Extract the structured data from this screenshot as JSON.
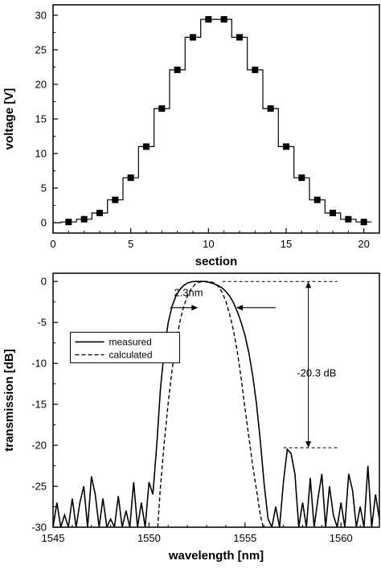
{
  "chart_data": [
    {
      "type": "line",
      "step": true,
      "xlabel": "section",
      "ylabel": "voltage [V]",
      "xlim": [
        0,
        21
      ],
      "ylim": [
        -1.5,
        31.5
      ],
      "xticks": [
        0,
        5,
        10,
        15,
        20
      ],
      "yticks": [
        0,
        5,
        10,
        15,
        20,
        25,
        30
      ],
      "series": [
        {
          "marker": "square",
          "x": [
            1,
            2,
            3,
            4,
            5,
            6,
            7,
            8,
            9,
            10,
            11,
            12,
            13,
            14,
            15,
            16,
            17,
            18,
            19,
            20
          ],
          "values": [
            0.1,
            0.5,
            1.4,
            3.3,
            6.5,
            11.0,
            16.5,
            22.1,
            26.8,
            29.4,
            29.4,
            26.8,
            22.1,
            16.5,
            11.0,
            6.5,
            3.3,
            1.4,
            0.5,
            0.1
          ]
        }
      ],
      "step_line": {
        "x": [
          0,
          0.5,
          0.5,
          1.5,
          1.5,
          2.5,
          2.5,
          3.5,
          3.5,
          4.5,
          4.5,
          5.5,
          5.5,
          6.5,
          6.5,
          7.5,
          7.5,
          8.5,
          8.5,
          9.5,
          9.5,
          11.5,
          11.5,
          12.5,
          12.5,
          13.5,
          13.5,
          14.5,
          14.5,
          15.5,
          15.5,
          16.5,
          16.5,
          17.5,
          17.5,
          18.5,
          18.5,
          19.5,
          19.5,
          20.5
        ],
        "y": [
          0,
          0,
          0.1,
          0.1,
          0.5,
          0.5,
          1.4,
          1.4,
          3.3,
          3.3,
          6.5,
          6.5,
          11.0,
          11.0,
          16.5,
          16.5,
          22.1,
          22.1,
          26.8,
          26.8,
          29.4,
          29.4,
          26.8,
          26.8,
          22.1,
          22.1,
          16.5,
          16.5,
          11.0,
          11.0,
          6.5,
          6.5,
          3.3,
          3.3,
          1.4,
          1.4,
          0.5,
          0.5,
          0.1,
          0.1
        ]
      }
    },
    {
      "type": "line",
      "xlabel": "wavelength [nm]",
      "ylabel": "transmission [dB]",
      "xlim": [
        1545,
        1562
      ],
      "ylim": [
        -30,
        1
      ],
      "xticks": [
        1545,
        1550,
        1555,
        1560
      ],
      "yticks": [
        0,
        -5,
        -10,
        -15,
        -20,
        -25,
        -30
      ],
      "legend": {
        "position": "upper-left",
        "entries": [
          "measured",
          "calculated"
        ]
      },
      "annotations": [
        {
          "text": "2.3nm",
          "x": 1551.4,
          "y": -2.0
        },
        {
          "text": "-20.3 dB",
          "x": 1557.8,
          "y": -11.5
        }
      ],
      "series": [
        {
          "name": "measured",
          "style": "solid",
          "x": [
            1545.0,
            1545.2,
            1545.4,
            1545.6,
            1545.8,
            1546.0,
            1546.2,
            1546.4,
            1546.6,
            1546.8,
            1547.0,
            1547.2,
            1547.4,
            1547.6,
            1547.8,
            1548.0,
            1548.2,
            1548.4,
            1548.6,
            1548.8,
            1549.0,
            1549.2,
            1549.4,
            1549.6,
            1549.8,
            1550.0,
            1550.2,
            1550.4,
            1550.6,
            1550.8,
            1551.0,
            1551.2,
            1551.4,
            1551.6,
            1551.8,
            1552.0,
            1552.2,
            1552.4,
            1552.6,
            1552.8,
            1553.0,
            1553.2,
            1553.4,
            1553.6,
            1553.8,
            1554.0,
            1554.2,
            1554.4,
            1554.6,
            1554.8,
            1555.0,
            1555.2,
            1555.4,
            1555.6,
            1555.8,
            1556.0,
            1556.2,
            1556.4,
            1556.6,
            1556.8,
            1557.0,
            1557.2,
            1557.4,
            1557.6,
            1557.8,
            1558.0,
            1558.2,
            1558.4,
            1558.6,
            1558.8,
            1559.0,
            1559.2,
            1559.4,
            1559.6,
            1559.8,
            1560.0,
            1560.2,
            1560.4,
            1560.6,
            1560.8,
            1561.0,
            1561.2,
            1561.4,
            1561.6,
            1561.8,
            1562.0
          ],
          "values": [
            -30.0,
            -27.0,
            -30.0,
            -28.5,
            -30.0,
            -26.5,
            -30.0,
            -27.0,
            -25.0,
            -30.0,
            -23.8,
            -26.0,
            -30.0,
            -26.5,
            -30.0,
            -29.0,
            -30.0,
            -26.2,
            -30.0,
            -28.0,
            -30.0,
            -24.5,
            -30.0,
            -27.0,
            -30.0,
            -24.5,
            -26.0,
            -20.0,
            -13.0,
            -8.3,
            -5.0,
            -3.0,
            -1.8,
            -1.0,
            -0.5,
            -0.2,
            -0.05,
            0.0,
            0.0,
            0.0,
            -0.05,
            -0.15,
            -0.3,
            -0.5,
            -0.8,
            -1.2,
            -1.8,
            -2.6,
            -3.7,
            -5.0,
            -6.6,
            -8.7,
            -11.5,
            -15.0,
            -19.5,
            -24.8,
            -29.0,
            -30.0,
            -27.5,
            -30.0,
            -24.5,
            -20.5,
            -21.0,
            -23.5,
            -30.0,
            -27.0,
            -30.0,
            -24.0,
            -30.0,
            -26.5,
            -23.5,
            -30.0,
            -25.0,
            -28.5,
            -30.0,
            -27.0,
            -30.0,
            -23.5,
            -25.5,
            -30.0,
            -27.5,
            -30.0,
            -22.5,
            -30.0,
            -26.0,
            -29.0
          ]
        },
        {
          "name": "calculated",
          "style": "dashed",
          "x": [
            1550.45,
            1550.6,
            1550.8,
            1551.0,
            1551.2,
            1551.4,
            1551.6,
            1551.8,
            1552.0,
            1552.2,
            1552.4,
            1552.6,
            1552.8,
            1553.0,
            1553.2,
            1553.4,
            1553.6,
            1553.8,
            1554.0,
            1554.2,
            1554.4,
            1554.6,
            1554.8,
            1555.0,
            1555.2,
            1555.4,
            1555.6,
            1555.8,
            1555.95
          ],
          "values": [
            -30.0,
            -25.0,
            -19.5,
            -14.8,
            -10.8,
            -7.6,
            -5.0,
            -3.1,
            -1.8,
            -0.9,
            -0.35,
            -0.1,
            0.0,
            0.0,
            -0.05,
            -0.2,
            -0.6,
            -1.3,
            -2.4,
            -4.0,
            -6.0,
            -8.6,
            -11.8,
            -15.5,
            -19.0,
            -22.5,
            -25.5,
            -28.5,
            -30.0
          ]
        }
      ]
    }
  ]
}
